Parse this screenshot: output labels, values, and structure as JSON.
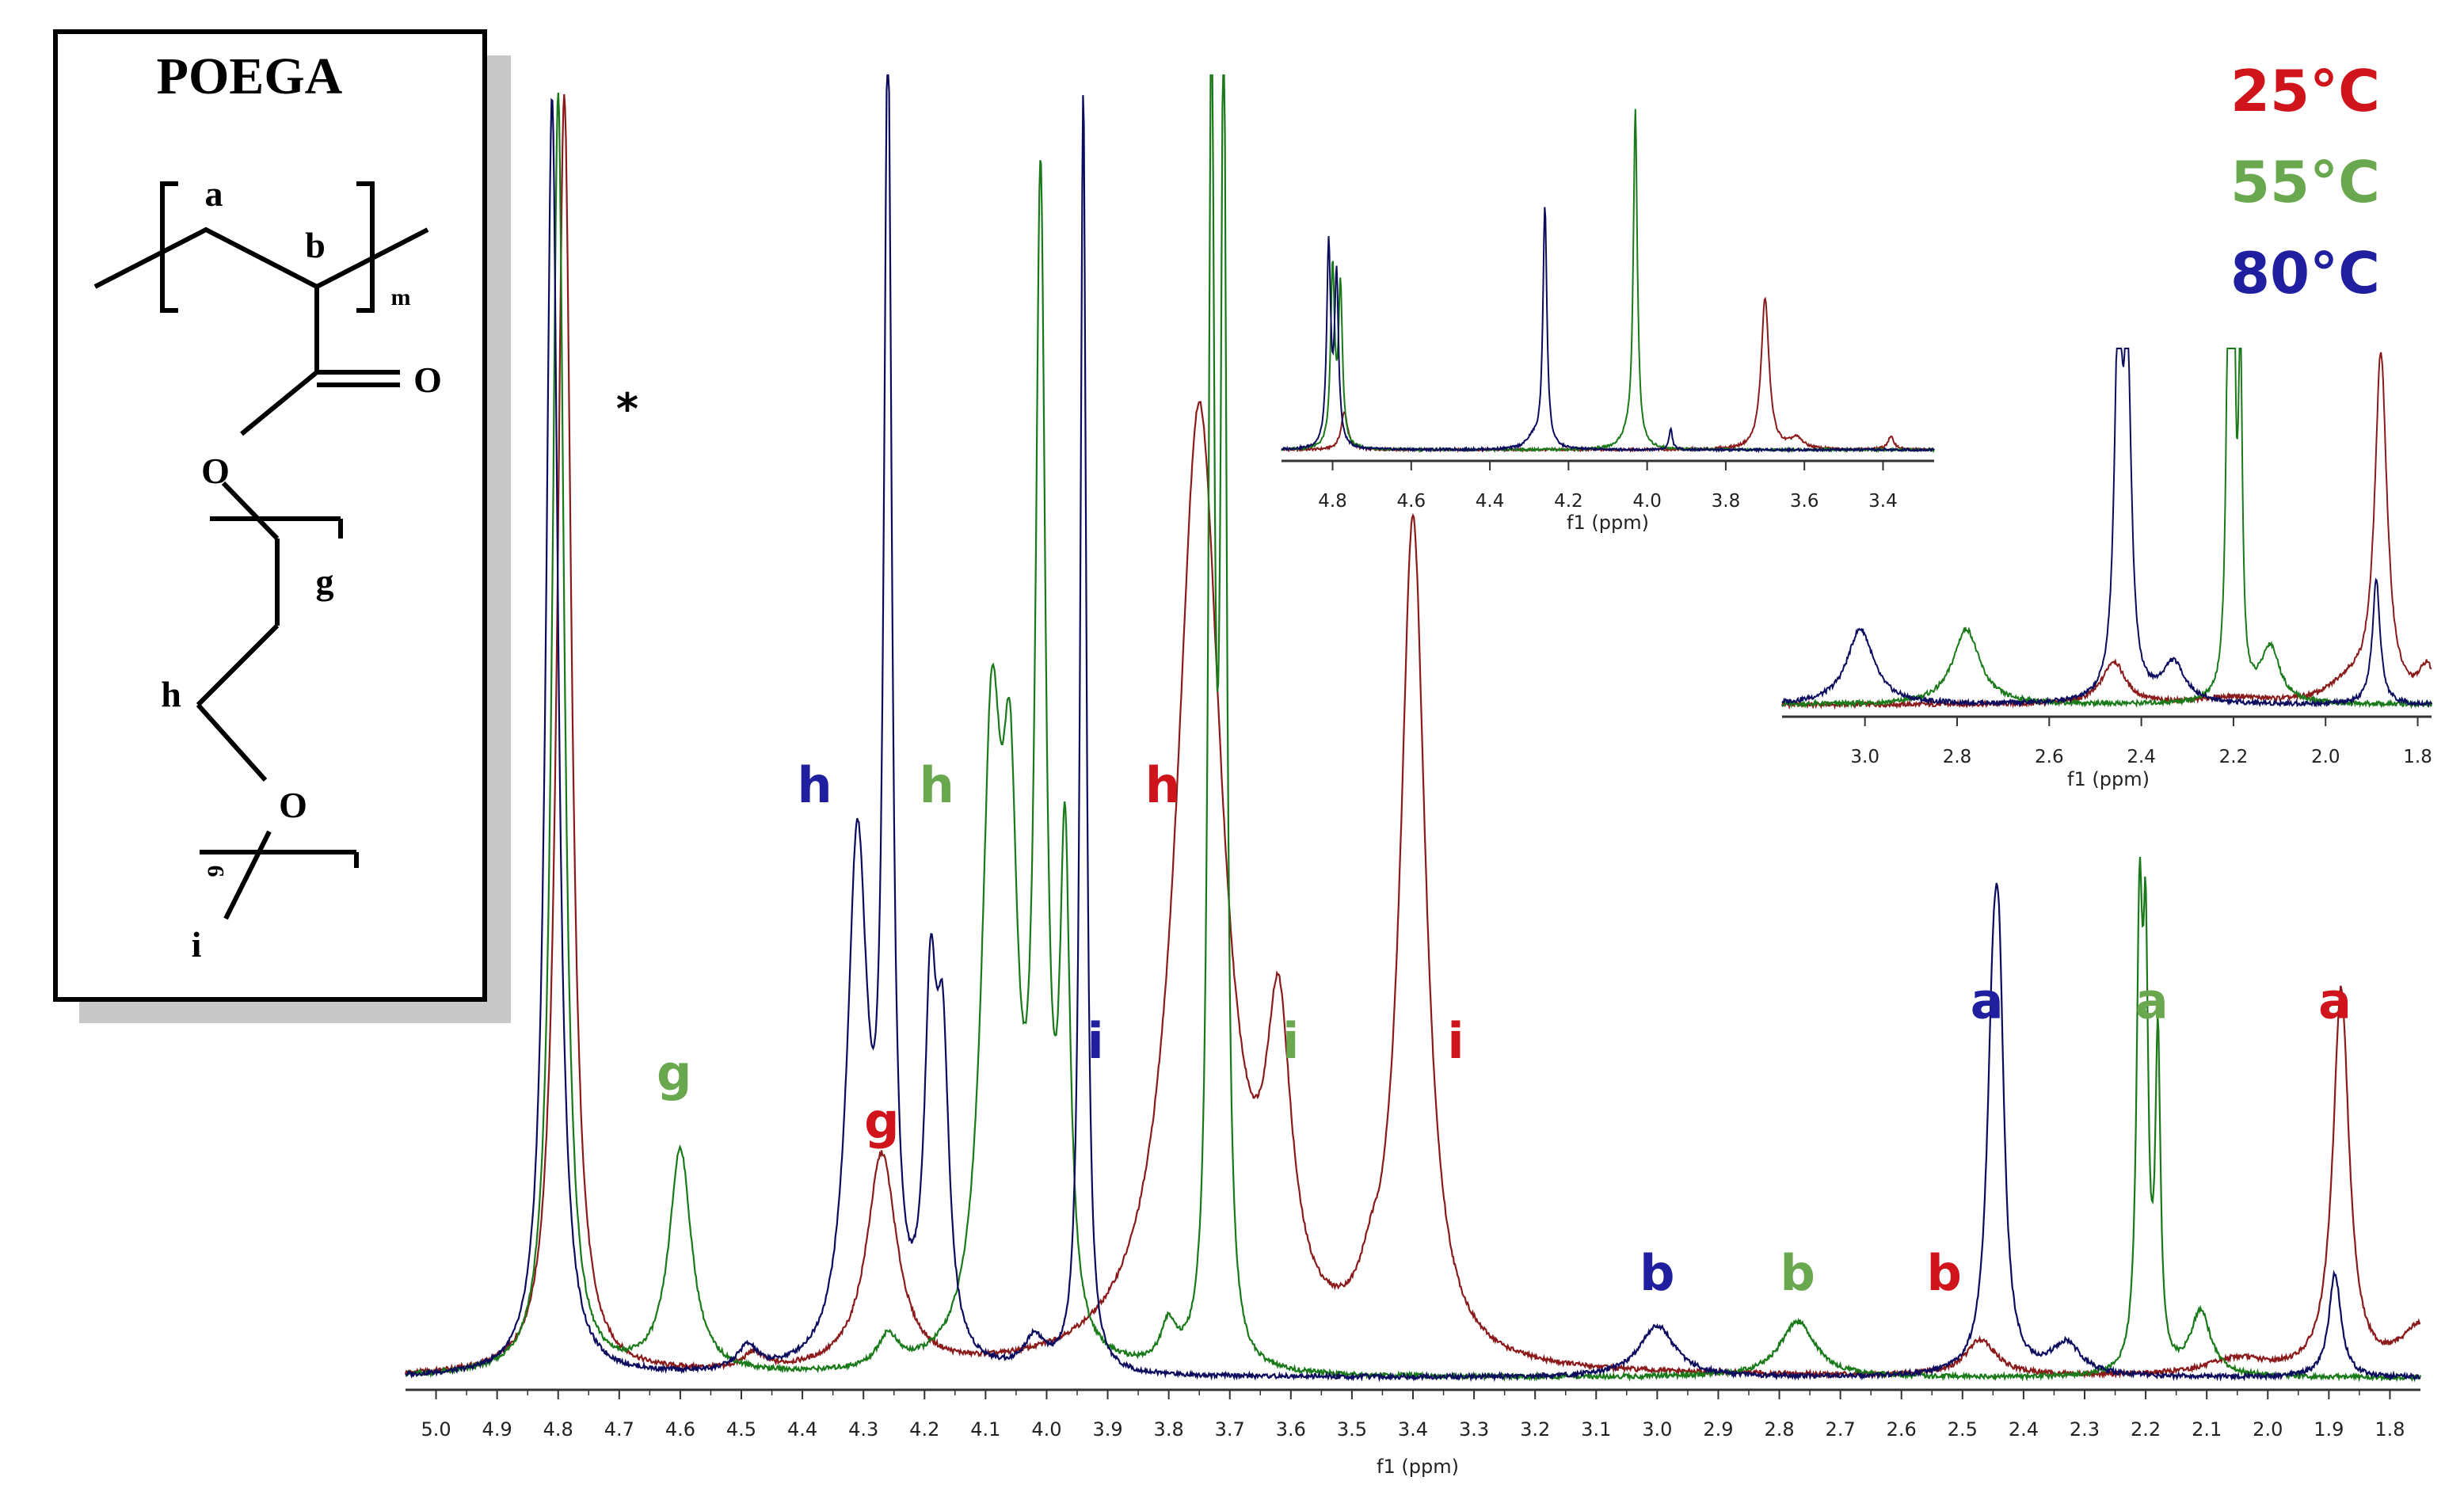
{
  "structure": {
    "title": "POEGA",
    "labels": {
      "a": "a",
      "b": "b",
      "m": "m",
      "O_carbonyl": "O",
      "O_ester": "O",
      "g": "g",
      "h": "h",
      "O_ether": "O",
      "n": "9",
      "i": "i"
    }
  },
  "legend": [
    {
      "label": "25°C",
      "color": "#d0141c"
    },
    {
      "label": "55°C",
      "color": "#6aa84f"
    },
    {
      "label": "80°C",
      "color": "#1f1fa0"
    }
  ],
  "asterisk": "*",
  "chart_data": [
    {
      "type": "line",
      "xlabel": "f1 (ppm)",
      "xlim": [
        5.05,
        1.75
      ],
      "x_ticks": [
        "5.0",
        "4.9",
        "4.8",
        "4.7",
        "4.6",
        "4.5",
        "4.4",
        "4.3",
        "4.2",
        "4.1",
        "4.0",
        "3.9",
        "3.8",
        "3.7",
        "3.6",
        "3.5",
        "3.4",
        "3.3",
        "3.2",
        "3.1",
        "3.0",
        "2.9",
        "2.8",
        "2.7",
        "2.6",
        "2.5",
        "2.4",
        "2.3",
        "2.2",
        "2.1",
        "2.0",
        "1.9",
        "1.8"
      ],
      "series": [
        {
          "temperature": "25°C",
          "color": "#8b1a1a",
          "peaks": [
            [
              4.79,
              1.6,
              0.014
            ],
            [
              4.27,
              0.27,
              0.03
            ],
            [
              4.48,
              0.02,
              0.02
            ],
            [
              3.75,
              1.2,
              0.045
            ],
            [
              3.62,
              0.36,
              0.025
            ],
            [
              3.4,
              1.05,
              0.025
            ],
            [
              3.47,
              0.04,
              0.02
            ],
            [
              2.47,
              0.045,
              0.03
            ],
            [
              1.88,
              0.48,
              0.016
            ],
            [
              2.05,
              0.02,
              0.06
            ],
            [
              1.75,
              0.06,
              0.04
            ]
          ],
          "peak_labels": [
            {
              "text": "g",
              "ppm": 4.27,
              "height": 0.3
            },
            {
              "text": "h",
              "ppm": 3.81,
              "height": 0.72
            },
            {
              "text": "i",
              "ppm": 3.33,
              "height": 0.4
            },
            {
              "text": "b",
              "ppm": 2.53,
              "height": 0.11
            },
            {
              "text": "a",
              "ppm": 1.89,
              "height": 0.45
            }
          ]
        },
        {
          "temperature": "55°C",
          "color": "#1a7a1a",
          "peaks": [
            [
              4.8,
              1.6,
              0.012
            ],
            [
              4.6,
              0.28,
              0.022
            ],
            [
              4.26,
              0.04,
              0.02
            ],
            [
              4.09,
              0.75,
              0.02
            ],
            [
              4.06,
              0.55,
              0.015
            ],
            [
              4.01,
              1.4,
              0.01
            ],
            [
              3.97,
              0.6,
              0.01
            ],
            [
              3.73,
              1.6,
              0.006
            ],
            [
              3.71,
              1.6,
              0.006
            ],
            [
              3.8,
              0.05,
              0.015
            ],
            [
              2.77,
              0.07,
              0.035
            ],
            [
              2.21,
              0.54,
              0.006
            ],
            [
              2.2,
              0.45,
              0.005
            ],
            [
              2.18,
              0.4,
              0.005
            ],
            [
              2.11,
              0.08,
              0.02
            ]
          ],
          "peak_labels": [
            {
              "text": "g",
              "ppm": 4.61,
              "height": 0.36
            },
            {
              "text": "h",
              "ppm": 4.18,
              "height": 0.72
            },
            {
              "text": "i",
              "ppm": 3.6,
              "height": 0.4
            },
            {
              "text": "b",
              "ppm": 2.77,
              "height": 0.11
            },
            {
              "text": "a",
              "ppm": 2.19,
              "height": 0.45
            }
          ]
        },
        {
          "temperature": "80°C",
          "color": "#0c0c5e",
          "peaks": [
            [
              4.81,
              1.6,
              0.012
            ],
            [
              4.31,
              0.65,
              0.02
            ],
            [
              4.26,
              1.6,
              0.008
            ],
            [
              4.19,
              0.42,
              0.012
            ],
            [
              4.17,
              0.35,
              0.012
            ],
            [
              3.94,
              1.6,
              0.006
            ],
            [
              4.02,
              0.04,
              0.02
            ],
            [
              4.49,
              0.03,
              0.02
            ],
            [
              3.0,
              0.065,
              0.035
            ],
            [
              2.45,
              0.38,
              0.012
            ],
            [
              2.44,
              0.36,
              0.01
            ],
            [
              2.33,
              0.04,
              0.03
            ],
            [
              1.89,
              0.13,
              0.012
            ]
          ],
          "peak_labels": [
            {
              "text": "h",
              "ppm": 4.38,
              "height": 0.72
            },
            {
              "text": "i",
              "ppm": 3.92,
              "height": 0.4
            },
            {
              "text": "b",
              "ppm": 3.0,
              "height": 0.11
            },
            {
              "text": "a",
              "ppm": 2.46,
              "height": 0.45
            }
          ]
        }
      ]
    },
    {
      "type": "line",
      "xlabel": "f1 (ppm)",
      "xlim": [
        4.93,
        3.27
      ],
      "x_ticks": [
        "4.8",
        "4.6",
        "4.4",
        "4.2",
        "4.0",
        "3.8",
        "3.6",
        "3.4"
      ],
      "series": [
        {
          "temperature": "25°C",
          "color": "#8b1a1a",
          "peaks": [
            [
              4.77,
              0.18,
              0.01
            ],
            [
              3.7,
              0.72,
              0.012
            ],
            [
              3.62,
              0.05,
              0.02
            ],
            [
              3.38,
              0.06,
              0.01
            ]
          ]
        },
        {
          "temperature": "55°C",
          "color": "#1a7a1a",
          "peaks": [
            [
              4.8,
              0.85,
              0.006
            ],
            [
              4.78,
              0.75,
              0.006
            ],
            [
              4.03,
              1.6,
              0.006
            ],
            [
              4.05,
              0.05,
              0.02
            ]
          ]
        },
        {
          "temperature": "80°C",
          "color": "#0c0c5e",
          "peaks": [
            [
              4.81,
              0.95,
              0.006
            ],
            [
              4.79,
              0.8,
              0.006
            ],
            [
              4.26,
              1.15,
              0.006
            ],
            [
              4.29,
              0.05,
              0.02
            ],
            [
              3.94,
              0.1,
              0.005
            ]
          ]
        }
      ]
    },
    {
      "type": "line",
      "xlabel": "f1 (ppm)",
      "xlim": [
        3.18,
        1.77
      ],
      "x_ticks": [
        "3.0",
        "2.8",
        "2.6",
        "2.4",
        "2.2",
        "2.0",
        "1.8"
      ],
      "series": [
        {
          "temperature": "25°C",
          "color": "#8b1a1a",
          "peaks": [
            [
              2.46,
              0.13,
              0.03
            ],
            [
              1.88,
              1.05,
              0.016
            ],
            [
              1.95,
              0.06,
              0.05
            ],
            [
              1.78,
              0.1,
              0.02
            ],
            [
              2.2,
              0.02,
              0.08
            ]
          ]
        },
        {
          "temperature": "55°C",
          "color": "#1a7a1a",
          "peaks": [
            [
              2.78,
              0.23,
              0.035
            ],
            [
              2.21,
              1.35,
              0.006
            ],
            [
              2.2,
              1.1,
              0.005
            ],
            [
              2.185,
              1.0,
              0.005
            ],
            [
              2.12,
              0.17,
              0.025
            ]
          ]
        },
        {
          "temperature": "80°C",
          "color": "#0c0c5e",
          "peaks": [
            [
              3.01,
              0.23,
              0.035
            ],
            [
              2.45,
              1.1,
              0.01
            ],
            [
              2.43,
              0.95,
              0.01
            ],
            [
              2.33,
              0.12,
              0.03
            ],
            [
              1.89,
              0.38,
              0.01
            ]
          ]
        }
      ]
    }
  ]
}
